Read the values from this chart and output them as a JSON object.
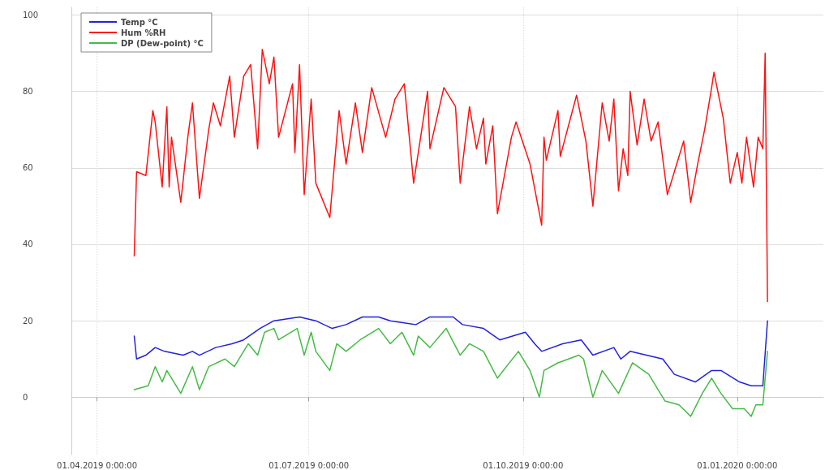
{
  "chart_data": {
    "type": "line",
    "xlim": [
      "2019-03-21",
      "2020-02-07"
    ],
    "ylim": [
      -15,
      102
    ],
    "xticks": [
      {
        "value": "2019-04-01",
        "label": "01.04.2019 0:00:00"
      },
      {
        "value": "2019-07-01",
        "label": "01.07.2019 0:00:00"
      },
      {
        "value": "2019-10-01",
        "label": "01.10.2019 0:00:00"
      },
      {
        "value": "2020-01-01",
        "label": "01.01.2020 0:00:00"
      }
    ],
    "yticks": [
      0,
      20,
      40,
      60,
      80,
      100
    ],
    "grid": true,
    "legend": "top left",
    "marker": "none",
    "line_style": "solid",
    "series": [
      {
        "name": "Temp °C",
        "color": "#2222dd",
        "x": [
          "2019-04-17",
          "2019-04-18",
          "2019-04-22",
          "2019-04-26",
          "2019-04-30",
          "2019-05-08",
          "2019-05-12",
          "2019-05-15",
          "2019-05-22",
          "2019-05-29",
          "2019-06-03",
          "2019-06-10",
          "2019-06-16",
          "2019-06-27",
          "2019-07-04",
          "2019-07-11",
          "2019-07-17",
          "2019-07-24",
          "2019-07-31",
          "2019-08-05",
          "2019-08-16",
          "2019-08-22",
          "2019-09-01",
          "2019-09-05",
          "2019-09-14",
          "2019-09-21",
          "2019-10-02",
          "2019-10-06",
          "2019-10-09",
          "2019-10-18",
          "2019-10-26",
          "2019-10-31",
          "2019-11-09",
          "2019-11-12",
          "2019-11-16",
          "2019-11-30",
          "2019-12-05",
          "2019-12-14",
          "2019-12-21",
          "2019-12-25",
          "2020-01-02",
          "2020-01-07",
          "2020-01-12",
          "2020-01-14"
        ],
        "values": [
          16,
          10,
          11,
          13,
          12,
          11,
          12,
          11,
          13,
          14,
          15,
          18,
          20,
          21,
          20,
          18,
          19,
          21,
          21,
          20,
          19,
          21,
          21,
          19,
          18,
          15,
          17,
          14,
          12,
          14,
          15,
          11,
          13,
          10,
          12,
          10,
          6,
          4,
          7,
          7,
          4,
          3,
          3,
          20
        ]
      },
      {
        "name": "Hum %RH",
        "color": "#ff1111",
        "x": [
          "2019-04-17",
          "2019-04-18",
          "2019-04-22",
          "2019-04-25",
          "2019-04-26",
          "2019-04-29",
          "2019-05-01",
          "2019-05-02",
          "2019-05-03",
          "2019-05-07",
          "2019-05-10",
          "2019-05-12",
          "2019-05-15",
          "2019-05-19",
          "2019-05-21",
          "2019-05-24",
          "2019-05-28",
          "2019-05-30",
          "2019-06-03",
          "2019-06-06",
          "2019-06-09",
          "2019-06-11",
          "2019-06-14",
          "2019-06-16",
          "2019-06-18",
          "2019-06-24",
          "2019-06-25",
          "2019-06-27",
          "2019-06-29",
          "2019-07-02",
          "2019-07-04",
          "2019-07-10",
          "2019-07-14",
          "2019-07-17",
          "2019-07-21",
          "2019-07-24",
          "2019-07-28",
          "2019-08-03",
          "2019-08-07",
          "2019-08-11",
          "2019-08-15",
          "2019-08-21",
          "2019-08-22",
          "2019-08-28",
          "2019-09-02",
          "2019-09-04",
          "2019-09-08",
          "2019-09-11",
          "2019-09-14",
          "2019-09-15",
          "2019-09-18",
          "2019-09-20",
          "2019-09-26",
          "2019-09-28",
          "2019-10-04",
          "2019-10-09",
          "2019-10-10",
          "2019-10-11",
          "2019-10-16",
          "2019-10-17",
          "2019-10-24",
          "2019-10-28",
          "2019-10-31",
          "2019-11-04",
          "2019-11-07",
          "2019-11-09",
          "2019-11-11",
          "2019-11-13",
          "2019-11-15",
          "2019-11-16",
          "2019-11-19",
          "2019-11-22",
          "2019-11-25",
          "2019-11-28",
          "2019-12-02",
          "2019-12-04",
          "2019-12-09",
          "2019-12-12",
          "2019-12-15",
          "2019-12-18",
          "2019-12-21",
          "2019-12-22",
          "2019-12-26",
          "2019-12-29",
          "2020-01-01",
          "2020-01-03",
          "2020-01-05",
          "2020-01-08",
          "2020-01-10",
          "2020-01-12",
          "2020-01-13",
          "2020-01-14"
        ],
        "values": [
          37,
          59,
          58,
          75,
          72,
          55,
          76,
          55,
          68,
          51,
          68,
          77,
          52,
          70,
          77,
          71,
          84,
          68,
          84,
          87,
          65,
          91,
          82,
          89,
          68,
          82,
          64,
          87,
          53,
          78,
          56,
          47,
          75,
          61,
          77,
          64,
          81,
          68,
          78,
          82,
          56,
          80,
          65,
          81,
          76,
          56,
          76,
          65,
          73,
          61,
          71,
          48,
          68,
          72,
          61,
          45,
          68,
          62,
          75,
          63,
          79,
          67,
          50,
          77,
          67,
          78,
          54,
          65,
          58,
          80,
          66,
          78,
          67,
          72,
          53,
          57,
          67,
          51,
          61,
          70,
          81,
          85,
          73,
          56,
          64,
          56,
          68,
          55,
          68,
          65,
          90,
          25
        ]
      },
      {
        "name": "DP (Dew-point) °C",
        "color": "#44bb44",
        "x": [
          "2019-04-17",
          "2019-04-23",
          "2019-04-26",
          "2019-04-29",
          "2019-05-01",
          "2019-05-07",
          "2019-05-12",
          "2019-05-15",
          "2019-05-19",
          "2019-05-26",
          "2019-05-30",
          "2019-06-05",
          "2019-06-09",
          "2019-06-12",
          "2019-06-16",
          "2019-06-18",
          "2019-06-26",
          "2019-06-29",
          "2019-07-02",
          "2019-07-04",
          "2019-07-10",
          "2019-07-13",
          "2019-07-17",
          "2019-07-23",
          "2019-07-31",
          "2019-08-05",
          "2019-08-10",
          "2019-08-15",
          "2019-08-17",
          "2019-08-22",
          "2019-08-29",
          "2019-09-04",
          "2019-09-08",
          "2019-09-14",
          "2019-09-20",
          "2019-09-29",
          "2019-10-04",
          "2019-10-08",
          "2019-10-10",
          "2019-10-16",
          "2019-10-25",
          "2019-10-27",
          "2019-10-31",
          "2019-11-04",
          "2019-11-11",
          "2019-11-17",
          "2019-11-24",
          "2019-12-01",
          "2019-12-07",
          "2019-12-12",
          "2019-12-17",
          "2019-12-21",
          "2019-12-25",
          "2019-12-30",
          "2020-01-04",
          "2020-01-07",
          "2020-01-09",
          "2020-01-12",
          "2020-01-14"
        ],
        "values": [
          2,
          3,
          8,
          4,
          7,
          1,
          8,
          2,
          8,
          10,
          8,
          14,
          11,
          17,
          18,
          15,
          18,
          11,
          17,
          12,
          7,
          14,
          12,
          15,
          18,
          14,
          17,
          11,
          16,
          13,
          18,
          11,
          14,
          12,
          5,
          12,
          7,
          0,
          7,
          9,
          11,
          10,
          0,
          7,
          1,
          9,
          6,
          -1,
          -2,
          -5,
          1,
          5,
          1,
          -3,
          -3,
          -5,
          -2,
          -2,
          12
        ]
      }
    ]
  }
}
